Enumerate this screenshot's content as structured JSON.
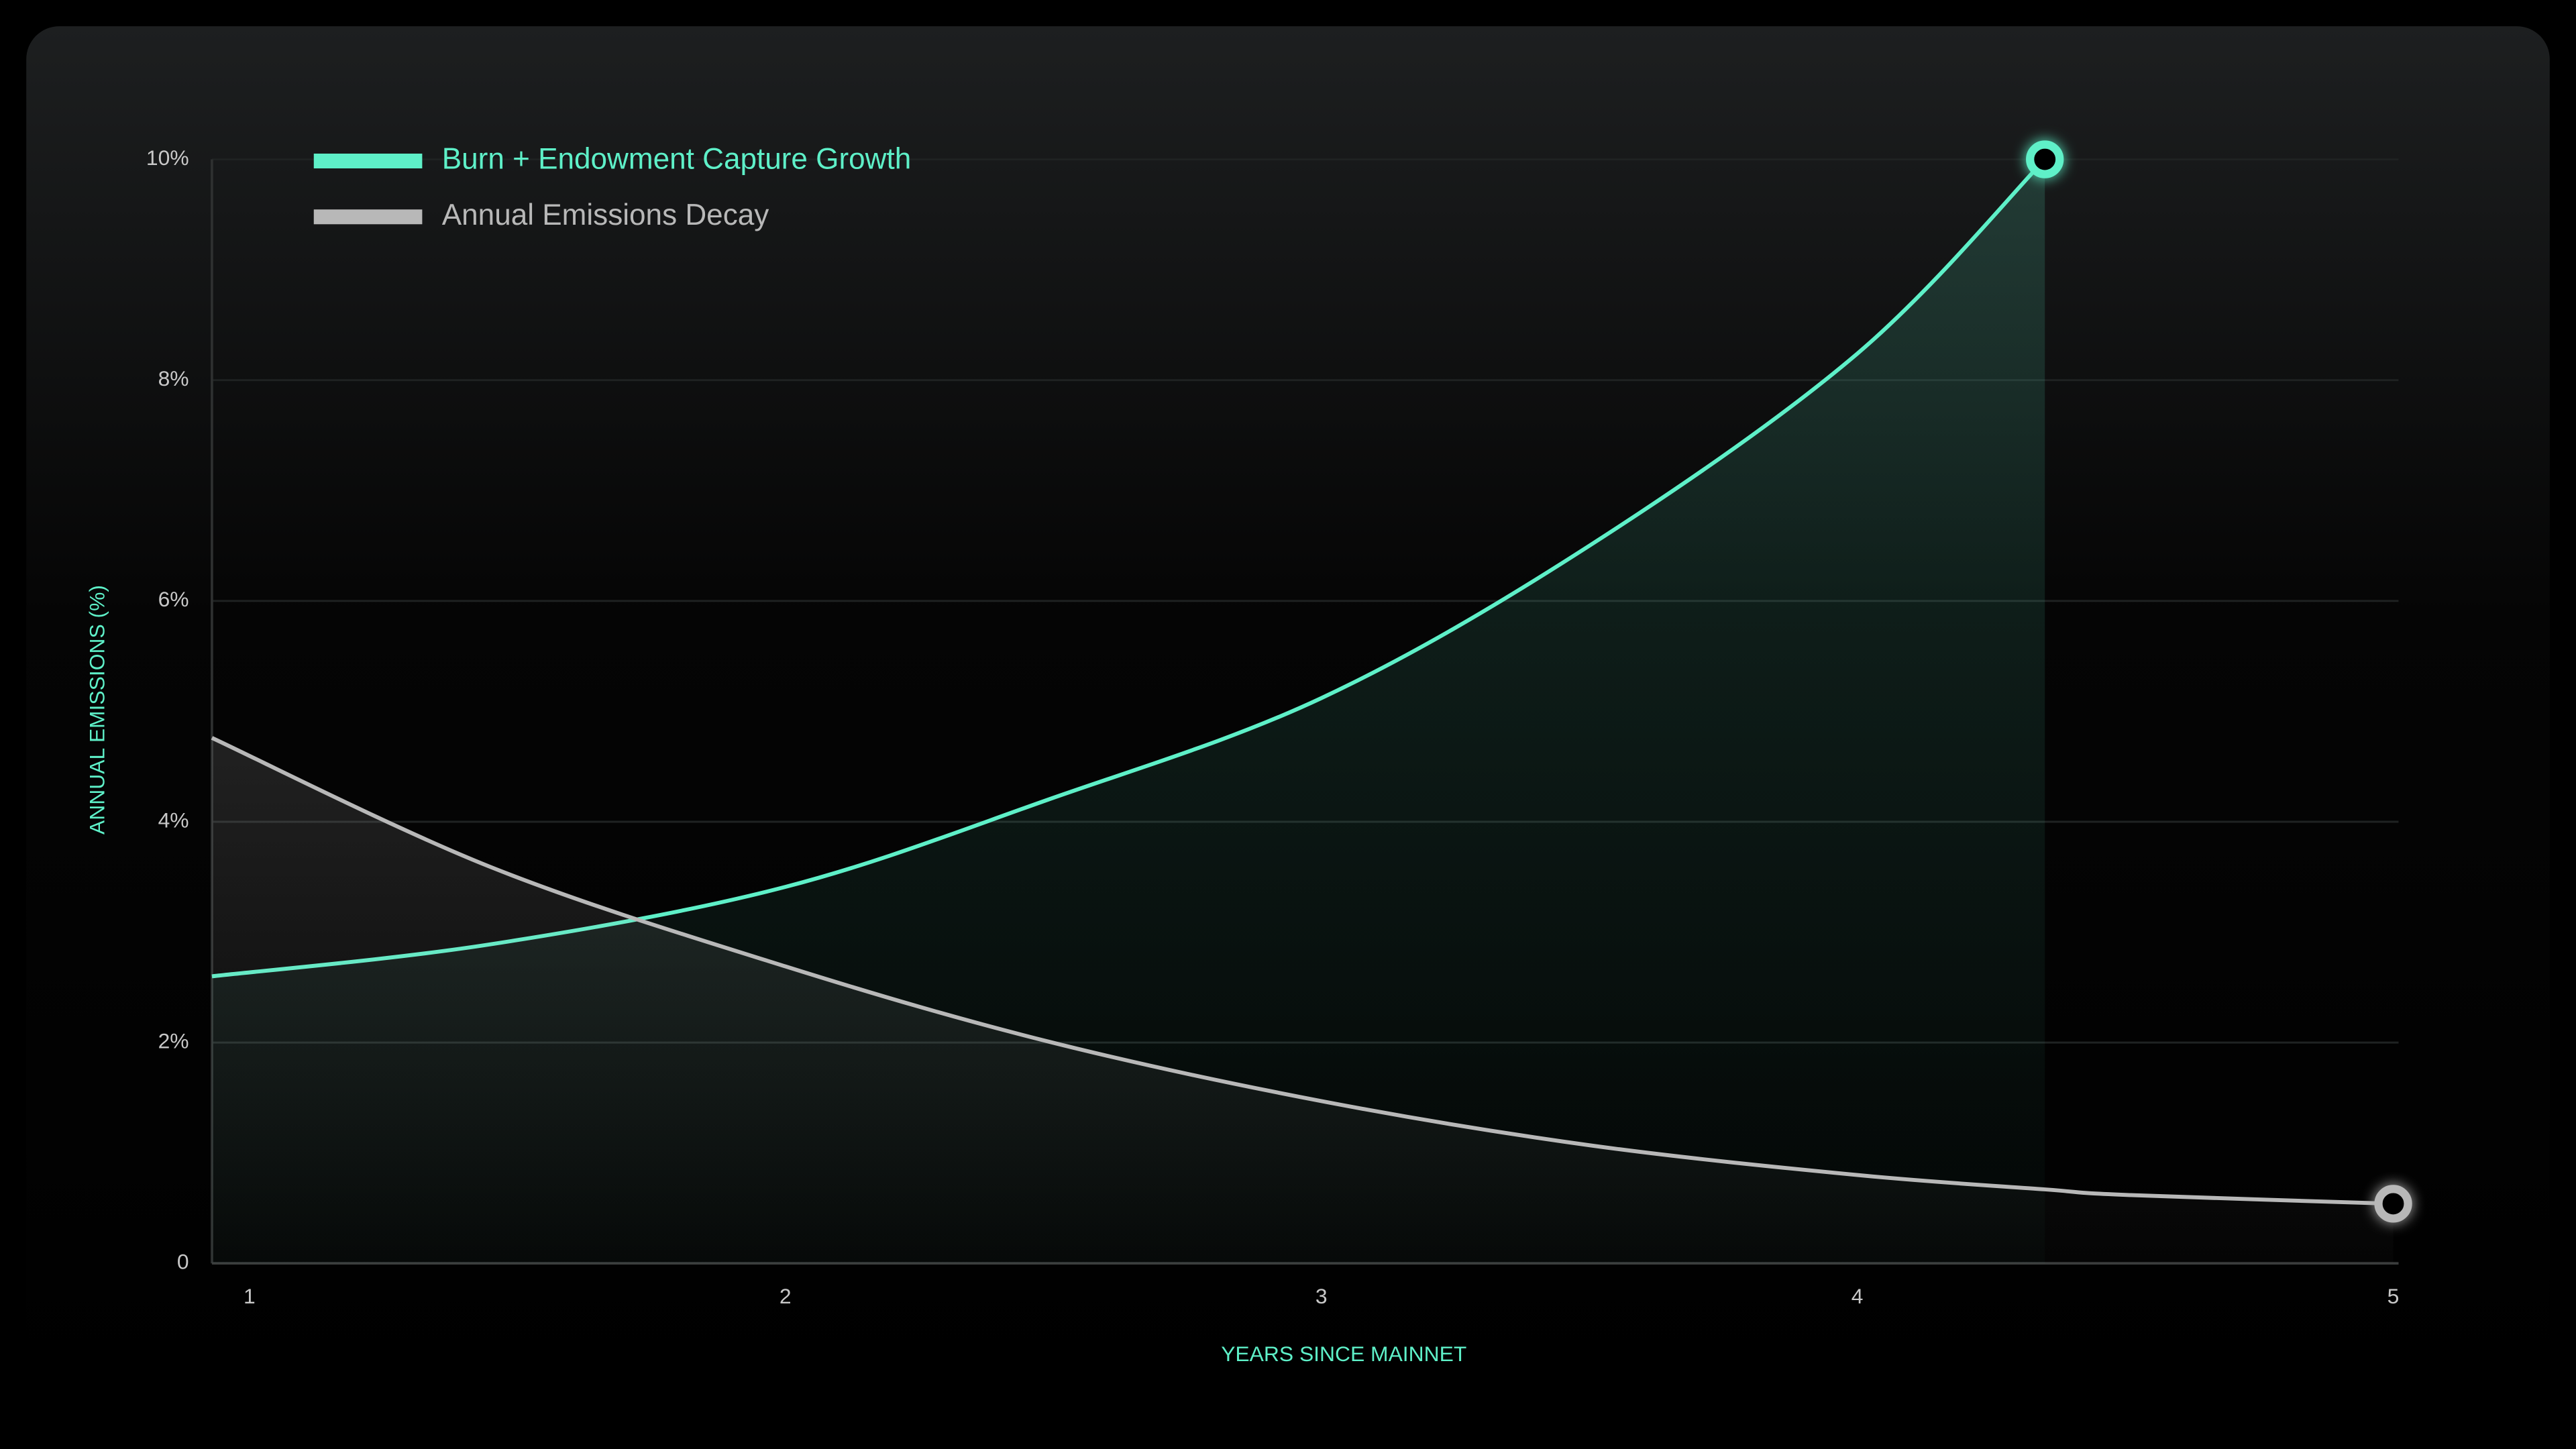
{
  "chart_data": {
    "type": "line",
    "x_label": "YEARS SINCE MAINNET",
    "y_label": "ANNUAL EMISSIONS (%)",
    "x": [
      0.93,
      1.45,
      2,
      2.49,
      3,
      3.5,
      4,
      4.35,
      4.5,
      5
    ],
    "series": [
      {
        "name": "Burn + Endowment Capture Growth",
        "color": "#5ef0c8",
        "values": [
          2.6,
          2.89,
          3.41,
          4.2,
          5.12,
          6.5,
          8.24,
          10,
          null,
          null
        ]
      },
      {
        "name": "Annual Emissions Decay",
        "color": "#b8b8b8",
        "values": [
          4.76,
          3.59,
          2.69,
          2.01,
          1.47,
          1.07,
          0.8,
          0.67,
          0.62,
          0.54
        ]
      }
    ],
    "xlim": [
      0.93,
      5.01
    ],
    "ylim": [
      0,
      10
    ],
    "xticks": [
      1,
      2,
      3,
      4,
      5
    ],
    "yticks": [
      0,
      {
        "value": 2,
        "label": "2%"
      },
      {
        "value": 4,
        "label": "4%"
      },
      {
        "value": 6,
        "label": "6%"
      },
      {
        "value": 8,
        "label": "8%"
      },
      {
        "value": 10,
        "label": "10%"
      }
    ],
    "grid": true
  }
}
